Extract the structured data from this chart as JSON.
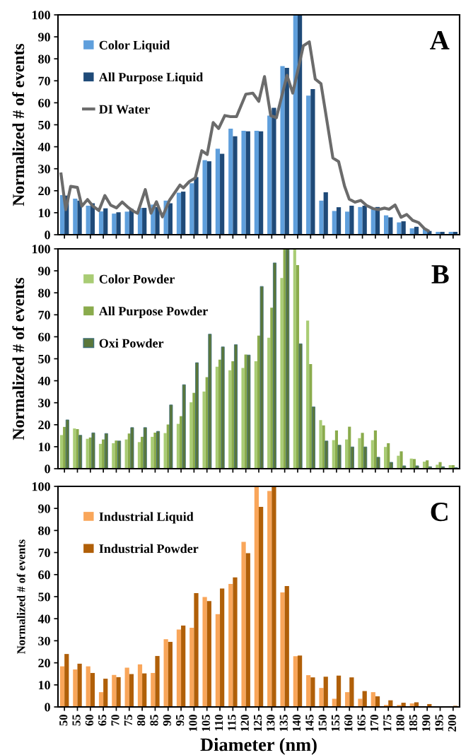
{
  "chart_data": [
    {
      "type": "bar",
      "ylabel": "Normalized # of events",
      "annotations": [
        "A"
      ],
      "x": [
        50,
        55,
        60,
        65,
        70,
        75,
        80,
        85,
        90,
        95,
        100,
        105,
        110,
        115,
        120,
        125,
        130,
        135,
        140,
        145,
        150,
        155,
        160,
        165,
        170,
        175,
        180,
        185,
        190,
        195,
        200
      ],
      "xlim": [
        47.5,
        202.5
      ],
      "xticks": [
        50,
        55,
        60,
        65,
        70,
        75,
        80,
        85,
        90,
        95,
        100,
        105,
        110,
        115,
        120,
        125,
        130,
        135,
        140,
        145,
        150,
        155,
        160,
        165,
        170,
        175,
        180,
        185,
        190,
        195,
        200
      ],
      "ylim": [
        0,
        100
      ],
      "yticks": [
        0,
        10,
        20,
        30,
        40,
        50,
        60,
        70,
        80,
        90,
        100
      ],
      "tick_labels": "y",
      "legend": "top left",
      "series": [
        {
          "name": "Color Liquid",
          "color": "#5f9fdc",
          "values": [
            18.0,
            16.4,
            13.2,
            10.6,
            9.6,
            10.5,
            12.2,
            13.7,
            15.5,
            19.1,
            23.4,
            33.9,
            39.1,
            48.2,
            47.3,
            47.3,
            54.2,
            76.7,
            100,
            63.3,
            15.5,
            10.8,
            10.5,
            12.6,
            12.1,
            8.8,
            5.6,
            2.9,
            2.7,
            1.3,
            1.3
          ]
        },
        {
          "name": "All Purpose Liquid",
          "color": "#1f4a78",
          "values": [
            17.8,
            15.5,
            14.3,
            12.0,
            10.2,
            11.7,
            12.2,
            12.6,
            14.3,
            19.6,
            26.2,
            33.4,
            36.8,
            44.8,
            47.0,
            47.0,
            57.7,
            75.9,
            100,
            66.2,
            19.3,
            12.5,
            13.2,
            13.2,
            12.6,
            7.9,
            6.1,
            3.6,
            1.7,
            1.3,
            1.3
          ]
        },
        {
          "name": "DI Water",
          "type": "line",
          "color": "#6b6b6b",
          "x": [
            48.6,
            50.5,
            52.4,
            55,
            56.7,
            58.9,
            61,
            63.3,
            65.6,
            67.8,
            70.1,
            72.3,
            74.6,
            76.9,
            78.2,
            81.2,
            83.4,
            85.5,
            87.8,
            90.5,
            94.6,
            95.9,
            98.2,
            100.5,
            103,
            105.1,
            107.4,
            109.5,
            111.9,
            114.1,
            116.4,
            120,
            122.7,
            125,
            127.2,
            129.6,
            131.8,
            135.9,
            138.1,
            142.2,
            144.5,
            146.8,
            149,
            153.6,
            155.8,
            158.1,
            159.9,
            162.1,
            164.4,
            166.7,
            169,
            171.2,
            173.5,
            175.3,
            177.6,
            179.9,
            182.1,
            184.4,
            186.7,
            188.9,
            190.8
          ],
          "values": [
            28.3,
            11.4,
            22,
            21.5,
            13,
            16,
            13,
            11,
            17.8,
            13.5,
            12.2,
            14.9,
            12.4,
            10.5,
            9.8,
            20.5,
            9.8,
            15,
            8.1,
            15.6,
            22.6,
            21.3,
            24.2,
            25.8,
            38.2,
            36.5,
            51,
            48.3,
            54.2,
            53.7,
            53.7,
            63.9,
            64.4,
            60.7,
            71.9,
            54.2,
            53.2,
            72.5,
            64.4,
            85.9,
            87.7,
            70.8,
            68.7,
            34.9,
            33.3,
            22.1,
            16.2,
            14.8,
            15.6,
            13.2,
            11.9,
            11.4,
            12.1,
            11.6,
            13.5,
            7.9,
            9.2,
            6.5,
            5.5,
            2.8,
            1.5
          ]
        }
      ]
    },
    {
      "type": "bar",
      "ylabel": "Normalized # of events",
      "annotations": [
        "B"
      ],
      "x": [
        50,
        55,
        60,
        65,
        70,
        75,
        80,
        85,
        90,
        95,
        100,
        105,
        110,
        115,
        120,
        125,
        130,
        135,
        140,
        145,
        150,
        155,
        160,
        165,
        170,
        175,
        180,
        185,
        190,
        195,
        200
      ],
      "xlim": [
        47.5,
        202.5
      ],
      "xticks": [
        50,
        55,
        60,
        65,
        70,
        75,
        80,
        85,
        90,
        95,
        100,
        105,
        110,
        115,
        120,
        125,
        130,
        135,
        140,
        145,
        150,
        155,
        160,
        165,
        170,
        175,
        180,
        185,
        190,
        195,
        200
      ],
      "ylim": [
        0,
        100
      ],
      "yticks": [
        0,
        10,
        20,
        30,
        40,
        50,
        60,
        70,
        80,
        90,
        100
      ],
      "tick_labels": "y",
      "legend": "top left",
      "series": [
        {
          "name": "Color Powder",
          "color": "#a9cc74",
          "values": [
            15.3,
            18.3,
            13.6,
            11.3,
            11.6,
            13.3,
            12.1,
            14.5,
            16.2,
            20.4,
            30.2,
            35.1,
            46.4,
            44.8,
            45.8,
            48.9,
            59.6,
            86.7,
            100,
            67.4,
            22.1,
            13.0,
            13.3,
            13.9,
            13.0,
            9.9,
            5.9,
            4.6,
            3.2,
            1.8,
            1.6
          ]
        },
        {
          "name": "All Purpose Powder",
          "color": "#8aab4c",
          "values": [
            19.0,
            18.0,
            14.2,
            13.3,
            12.8,
            16.0,
            14.5,
            16.4,
            20.1,
            23.9,
            34.5,
            41.6,
            49.6,
            48.9,
            51.9,
            60.5,
            73.2,
            100,
            92.6,
            47.6,
            19.7,
            17.4,
            19.1,
            16.3,
            17.4,
            11.6,
            7.9,
            4.4,
            3.8,
            3.0,
            1.6
          ]
        },
        {
          "name": "Oxi Powder",
          "color": "#5a773a",
          "values": [
            22.2,
            15.2,
            16.3,
            16.0,
            12.6,
            18.7,
            18.7,
            17.0,
            29.0,
            38.2,
            48.2,
            61.2,
            55.4,
            56.4,
            51.7,
            82.9,
            93.6,
            100,
            56.8,
            28.1,
            12.6,
            10.7,
            9.9,
            9.9,
            5.2,
            2.9,
            1.3,
            1.3,
            0.9,
            0.9,
            0.5
          ]
        }
      ]
    },
    {
      "type": "bar",
      "ylabel": "Normalized # of events",
      "xlabel": "Diameter (nm)",
      "annotations": [
        "C"
      ],
      "x": [
        50,
        55,
        60,
        65,
        70,
        75,
        80,
        85,
        90,
        95,
        100,
        105,
        110,
        115,
        120,
        125,
        130,
        135,
        140,
        145,
        150,
        155,
        160,
        165,
        170,
        175,
        180,
        185,
        190,
        195,
        200
      ],
      "xlim": [
        47.5,
        202.5
      ],
      "xticks": [
        50,
        55,
        60,
        65,
        70,
        75,
        80,
        85,
        90,
        95,
        100,
        105,
        110,
        115,
        120,
        125,
        130,
        135,
        140,
        145,
        150,
        155,
        160,
        165,
        170,
        175,
        180,
        185,
        190,
        195,
        200
      ],
      "ylim": [
        0,
        100
      ],
      "yticks": [
        0,
        10,
        20,
        30,
        40,
        50,
        60,
        70,
        80,
        90,
        100
      ],
      "legend": "top left",
      "series": [
        {
          "name": "Industrial Liquid",
          "color": "#f9a65a",
          "values": [
            18.4,
            17.0,
            18.4,
            6.7,
            14.5,
            17.8,
            19.3,
            15.4,
            30.7,
            35.1,
            35.9,
            49.8,
            42.1,
            55.8,
            74.8,
            100,
            97.9,
            51.9,
            23.0,
            14.4,
            8.6,
            3.7,
            6.7,
            3.7,
            6.7,
            0.9,
            0.9,
            1.6,
            0,
            0,
            0
          ]
        },
        {
          "name": "Industrial Powder",
          "color": "#b05f08",
          "values": [
            24.0,
            19.6,
            15.4,
            12.8,
            13.5,
            14.9,
            15.2,
            23.1,
            29.5,
            36.9,
            51.6,
            48.0,
            53.7,
            58.7,
            69.7,
            90.7,
            100,
            54.8,
            23.3,
            13.4,
            13.7,
            14.2,
            13.4,
            7.2,
            4.8,
            3.0,
            1.9,
            2.1,
            1.3,
            0,
            0.5
          ]
        }
      ]
    }
  ]
}
